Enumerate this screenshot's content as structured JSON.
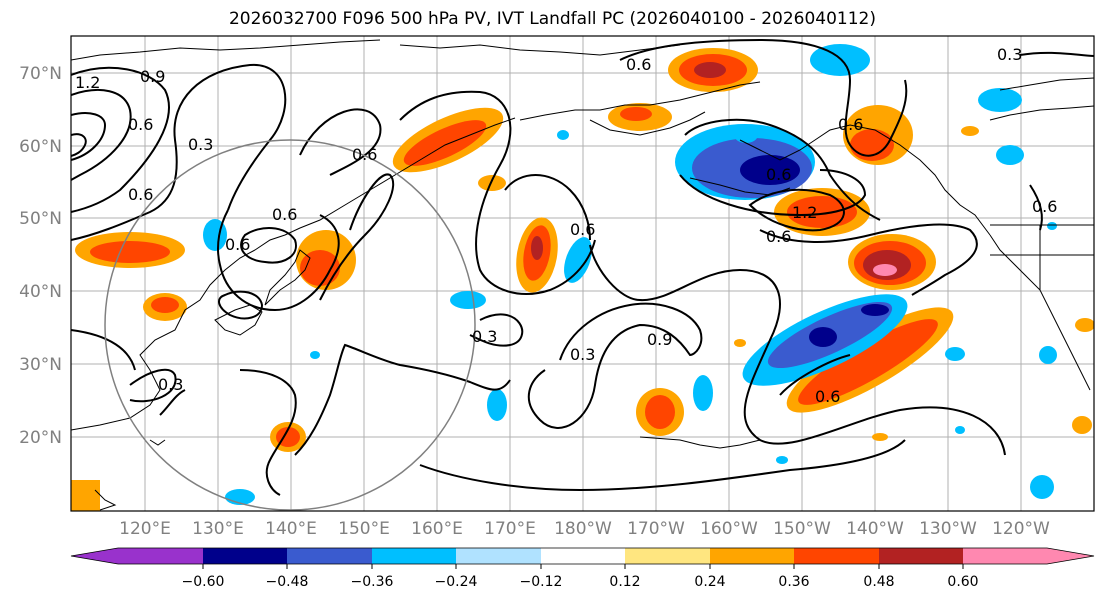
{
  "title": "2026032700 F096 500 hPa PV, IVT Landfall PC (2026040100 - 2026040112)",
  "lat_labels": [
    "70°N",
    "60°N",
    "50°N",
    "40°N",
    "30°N",
    "20°N"
  ],
  "lon_labels": [
    "120°E",
    "130°E",
    "140°E",
    "150°E",
    "160°E",
    "170°E",
    "180°W",
    "170°W",
    "160°W",
    "150°W",
    "140°W",
    "130°W",
    "120°W"
  ],
  "colorbar": {
    "ticks": [
      "−0.60",
      "−0.48",
      "−0.36",
      "−0.24",
      "−0.12",
      "0.12",
      "0.24",
      "0.36",
      "0.48",
      "0.60"
    ],
    "colors": [
      "#9932CC",
      "#00008B",
      "#3A5BCF",
      "#00BFFF",
      "#B0E2FF",
      "#FFFFFF",
      "#FFE680",
      "#FFA500",
      "#FF4500",
      "#B22222",
      "#FF88B0"
    ]
  },
  "contour_labels": [
    "0.9",
    "0.6",
    "0.3",
    "1.2",
    "0.6",
    "0.6",
    "0.6",
    "0.3",
    "0.3",
    "0.3",
    "0.9",
    "0.6",
    "0.6",
    "0.6",
    "0.6",
    "1.2",
    "0.6",
    "0.6",
    "0.3",
    "0.6",
    "0.6"
  ],
  "chart_data": {
    "type": "map",
    "projection": "cylindrical",
    "lon_range": [
      "110°E",
      "115°W"
    ],
    "lat_range": [
      10,
      75
    ],
    "fields": [
      "500 hPa PV (contours)",
      "IVT Landfall PC (shaded)"
    ],
    "init": "2026032700",
    "forecast_hour": "F096",
    "valid_window": "2026040100 - 2026040112"
  }
}
